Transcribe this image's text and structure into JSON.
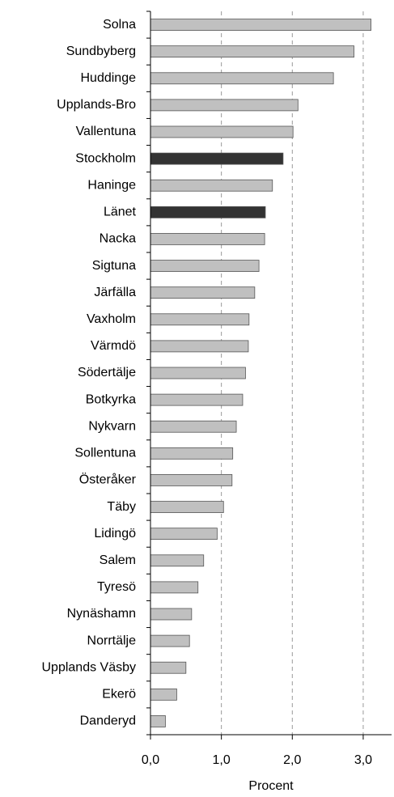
{
  "chart_data": {
    "type": "bar",
    "orientation": "horizontal",
    "x_label": "Procent",
    "categories": [
      "Solna",
      "Sundbyberg",
      "Huddinge",
      "Upplands-Bro",
      "Vallentuna",
      "Stockholm",
      "Haninge",
      "Länet",
      "Nacka",
      "Sigtuna",
      "Järfälla",
      "Vaxholm",
      "Värmdö",
      "Södertälje",
      "Botkyrka",
      "Nykvarn",
      "Sollentuna",
      "Österåker",
      "Täby",
      "Lidingö",
      "Salem",
      "Tyresö",
      "Nynäshamn",
      "Norrtälje",
      "Upplands Väsby",
      "Ekerö",
      "Danderyd"
    ],
    "values": [
      3.11,
      2.87,
      2.58,
      2.08,
      2.01,
      1.87,
      1.72,
      1.62,
      1.61,
      1.53,
      1.47,
      1.39,
      1.38,
      1.34,
      1.3,
      1.21,
      1.16,
      1.15,
      1.03,
      0.94,
      0.75,
      0.67,
      0.58,
      0.55,
      0.5,
      0.37,
      0.21
    ],
    "colors": [
      "#c0c0c0",
      "#c0c0c0",
      "#c0c0c0",
      "#c0c0c0",
      "#c0c0c0",
      "#333333",
      "#c0c0c0",
      "#333333",
      "#c0c0c0",
      "#c0c0c0",
      "#c0c0c0",
      "#c0c0c0",
      "#c0c0c0",
      "#c0c0c0",
      "#c0c0c0",
      "#c0c0c0",
      "#c0c0c0",
      "#c0c0c0",
      "#c0c0c0",
      "#c0c0c0",
      "#c0c0c0",
      "#c0c0c0",
      "#c0c0c0",
      "#c0c0c0",
      "#c0c0c0",
      "#c0c0c0",
      "#c0c0c0"
    ],
    "xlim": [
      0,
      3.4
    ],
    "xticks": [
      {
        "value": 0,
        "label": "0,0"
      },
      {
        "value": 1,
        "label": "1,0"
      },
      {
        "value": 2,
        "label": "2,0"
      },
      {
        "value": 3,
        "label": "3,0"
      }
    ],
    "grid": true
  }
}
